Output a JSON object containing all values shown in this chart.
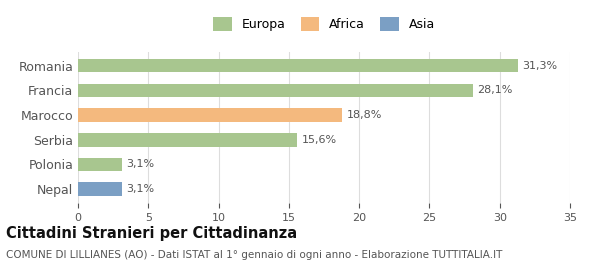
{
  "categories": [
    "Romania",
    "Francia",
    "Marocco",
    "Serbia",
    "Polonia",
    "Nepal"
  ],
  "values": [
    31.3,
    28.1,
    18.8,
    15.6,
    3.1,
    3.1
  ],
  "bar_colors": [
    "#a8c68f",
    "#a8c68f",
    "#f4b97e",
    "#a8c68f",
    "#a8c68f",
    "#7b9fc4"
  ],
  "labels": [
    "31,3%",
    "28,1%",
    "18,8%",
    "15,6%",
    "3,1%",
    "3,1%"
  ],
  "legend_labels": [
    "Europa",
    "Africa",
    "Asia"
  ],
  "legend_colors": [
    "#a8c68f",
    "#f4b97e",
    "#7b9fc4"
  ],
  "xlim": [
    0,
    35
  ],
  "xticks": [
    0,
    5,
    10,
    15,
    20,
    25,
    30,
    35
  ],
  "title": "Cittadini Stranieri per Cittadinanza",
  "subtitle": "COMUNE DI LILLIANES (AO) - Dati ISTAT al 1° gennaio di ogni anno - Elaborazione TUTTITALIA.IT",
  "title_fontsize": 10.5,
  "subtitle_fontsize": 7.5,
  "background_color": "#ffffff",
  "bar_height": 0.55,
  "label_color": "#555555",
  "grid_color": "#dddddd"
}
